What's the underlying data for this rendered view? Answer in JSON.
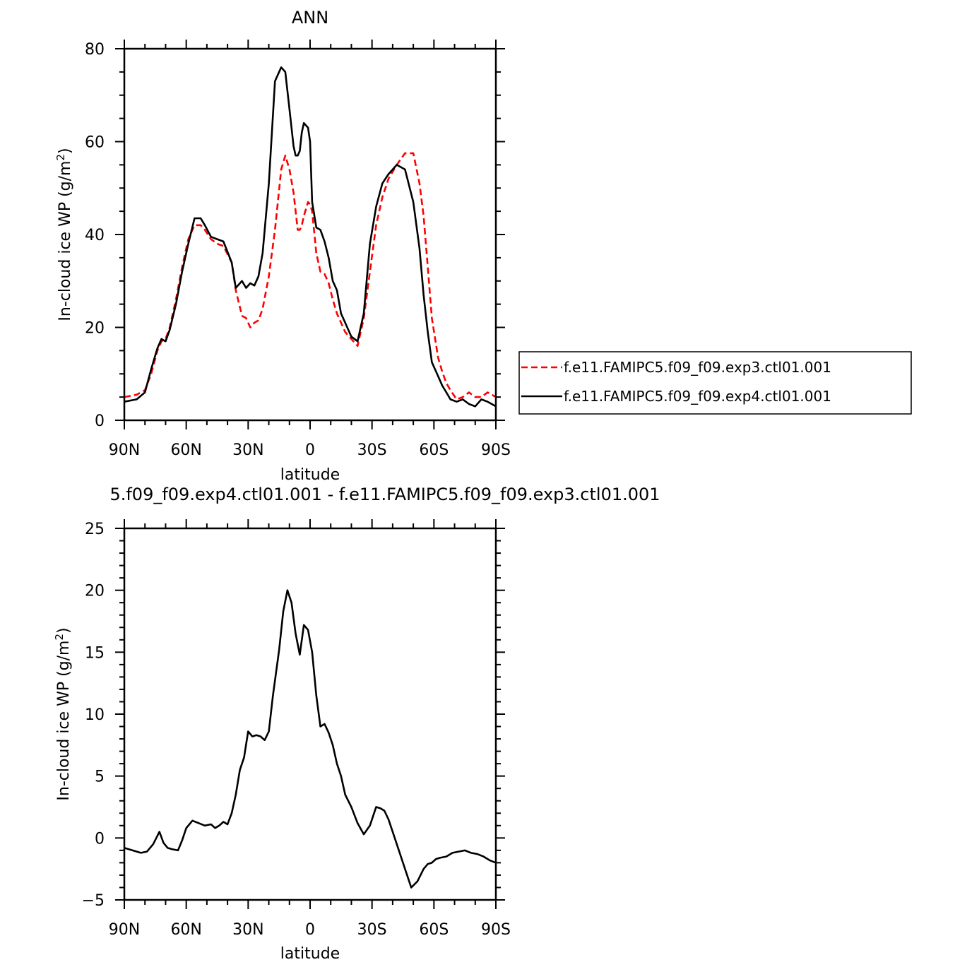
{
  "chart_data": [
    {
      "type": "line",
      "title": "ANN",
      "xlabel": "latitude",
      "ylabel": "In-cloud ice WP (g/m²)",
      "ylabel_main": "In-cloud ice WP (g/m",
      "ylabel_sup": "2",
      "ylabel_close": ")",
      "xlim": [
        90,
        -90
      ],
      "ylim": [
        0,
        80
      ],
      "x_ticks": [
        90,
        60,
        30,
        0,
        -30,
        -60,
        -90
      ],
      "x_tick_labels": [
        "90N",
        "60N",
        "30N",
        "0",
        "30S",
        "60S",
        "90S"
      ],
      "y_ticks": [
        0,
        20,
        40,
        60,
        80
      ],
      "y_tick_labels": [
        "0",
        "20",
        "40",
        "60",
        "80"
      ],
      "grid": false,
      "legend_position": "right",
      "series": [
        {
          "name": "f.e11.FAMIPC5.f09_f09.exp3.ctl01.001",
          "color": "#ff0000",
          "dash": "dashed",
          "x": [
            90,
            84,
            80,
            77,
            74,
            72,
            70,
            68,
            65,
            62,
            59,
            56,
            53,
            51,
            48,
            45,
            42,
            38,
            36,
            33,
            31,
            29,
            27,
            25,
            23,
            20,
            17,
            14,
            12,
            10,
            8,
            7,
            6,
            5,
            4,
            3,
            1,
            0,
            -1,
            -3,
            -5,
            -7,
            -9,
            -11,
            -13,
            -15,
            -17,
            -20,
            -23,
            -26,
            -29,
            -32,
            -35,
            -38,
            -42,
            -46,
            -50,
            -53,
            -55,
            -57,
            -59,
            -62,
            -64,
            -66,
            -68,
            -71,
            -74,
            -77,
            -80,
            -83,
            -86,
            -88,
            -90
          ],
          "y": [
            5,
            5.5,
            6.5,
            10,
            15,
            17,
            17.5,
            20,
            26,
            33,
            39,
            42,
            42,
            41,
            39,
            38,
            37.5,
            34,
            28,
            22.5,
            22,
            20,
            21,
            21.5,
            24,
            31,
            41,
            54,
            57,
            54,
            49,
            45,
            41,
            41,
            42,
            44,
            47,
            46.5,
            45,
            36,
            32,
            31.5,
            29.5,
            26,
            23,
            21,
            19,
            17.5,
            16,
            22,
            32,
            42,
            48,
            52,
            55,
            57.5,
            57.5,
            51,
            44,
            33,
            22,
            13.5,
            10.5,
            8,
            6.5,
            4.5,
            5,
            6,
            5,
            5,
            6,
            5.5,
            5
          ]
        },
        {
          "name": "f.e11.FAMIPC5.f09_f09.exp4.ctl01.001",
          "color": "#000000",
          "dash": "solid",
          "x": [
            90,
            84,
            80,
            77,
            74,
            72,
            70,
            68,
            65,
            62,
            59,
            56,
            53,
            51,
            48,
            45,
            42,
            38,
            36,
            33,
            31,
            29,
            27,
            25,
            23,
            20,
            17,
            14,
            12,
            10,
            8,
            7,
            6,
            5,
            4,
            3,
            1,
            0,
            -1,
            -3,
            -5,
            -7,
            -9,
            -11,
            -13,
            -15,
            -17,
            -20,
            -23,
            -26,
            -29,
            -32,
            -35,
            -38,
            -42,
            -46,
            -50,
            -53,
            -55,
            -57,
            -59,
            -62,
            -64,
            -66,
            -68,
            -71,
            -74,
            -77,
            -80,
            -83,
            -86,
            -88,
            -90
          ],
          "y": [
            4,
            4.5,
            6,
            11,
            15.5,
            17.5,
            17,
            19.5,
            25,
            32,
            38,
            43.5,
            43.5,
            42,
            39.5,
            39,
            38.5,
            34,
            28.5,
            30,
            28.5,
            29.5,
            29,
            31,
            36,
            51,
            73,
            76,
            75,
            67,
            59,
            57,
            57,
            58,
            62,
            64,
            63,
            60,
            47,
            41.5,
            41,
            38.5,
            35,
            30,
            28,
            23,
            21,
            18,
            17,
            23,
            38,
            46,
            51,
            53,
            55,
            54,
            47,
            37,
            27,
            19,
            12.5,
            9.5,
            7.5,
            6,
            4.5,
            4,
            4.5,
            3.5,
            3,
            4.5,
            4,
            3.5,
            3
          ]
        }
      ]
    },
    {
      "type": "line",
      "title": "5.f09_f09.exp4.ctl01.001  -  f.e11.FAMIPC5.f09_f09.exp3.ctl01.001",
      "xlabel": "latitude",
      "ylabel": "In-cloud ice WP (g/m²)",
      "ylabel_main": "In-cloud ice WP (g/m",
      "ylabel_sup": "2",
      "ylabel_close": ")",
      "xlim": [
        90,
        -90
      ],
      "ylim": [
        -5,
        25
      ],
      "x_ticks": [
        90,
        60,
        30,
        0,
        -30,
        -60,
        -90
      ],
      "x_tick_labels": [
        "90N",
        "60N",
        "30N",
        "0",
        "30S",
        "60S",
        "90S"
      ],
      "y_ticks": [
        -5,
        0,
        5,
        10,
        15,
        20,
        25
      ],
      "y_tick_labels": [
        "−5",
        "0",
        "5",
        "10",
        "15",
        "20",
        "25"
      ],
      "grid": false,
      "series": [
        {
          "color": "#000000",
          "dash": "solid",
          "x": [
            90,
            86,
            82,
            79,
            76,
            73,
            71,
            69,
            67,
            64,
            62,
            60,
            57,
            54,
            51,
            48,
            46,
            44,
            42,
            40,
            38,
            36,
            34,
            32,
            30,
            28,
            26,
            24,
            22,
            20,
            18,
            15,
            13,
            11,
            9,
            7,
            5,
            3,
            1,
            -1,
            -3,
            -5,
            -7,
            -9,
            -11,
            -13,
            -15,
            -17,
            -20,
            -23,
            -26,
            -29,
            -32,
            -34,
            -36,
            -38,
            -40,
            -43,
            -46,
            -49,
            -52,
            -55,
            -57,
            -59,
            -61,
            -63,
            -66,
            -69,
            -72,
            -75,
            -78,
            -81,
            -84,
            -87,
            -90
          ],
          "y": [
            -0.8,
            -1,
            -1.2,
            -1.1,
            -0.5,
            0.5,
            -0.4,
            -0.8,
            -0.9,
            -1,
            -0.2,
            0.8,
            1.4,
            1.2,
            1.0,
            1.1,
            0.8,
            1.0,
            1.3,
            1.1,
            2.0,
            3.5,
            5.5,
            6.5,
            8.6,
            8.2,
            8.3,
            8.2,
            7.9,
            8.6,
            11.5,
            15.2,
            18.3,
            20,
            19,
            16.5,
            14.8,
            17.2,
            16.8,
            15,
            11.5,
            9.0,
            9.2,
            8.5,
            7.5,
            6.0,
            5.0,
            3.5,
            2.5,
            1.2,
            0.3,
            1.0,
            2.5,
            2.4,
            2.2,
            1.5,
            0.5,
            -1.0,
            -2.5,
            -4.0,
            -3.5,
            -2.5,
            -2.1,
            -2.0,
            -1.7,
            -1.6,
            -1.5,
            -1.2,
            -1.1,
            -1.0,
            -1.2,
            -1.3,
            -1.5,
            -1.8,
            -2.0
          ]
        }
      ]
    }
  ]
}
